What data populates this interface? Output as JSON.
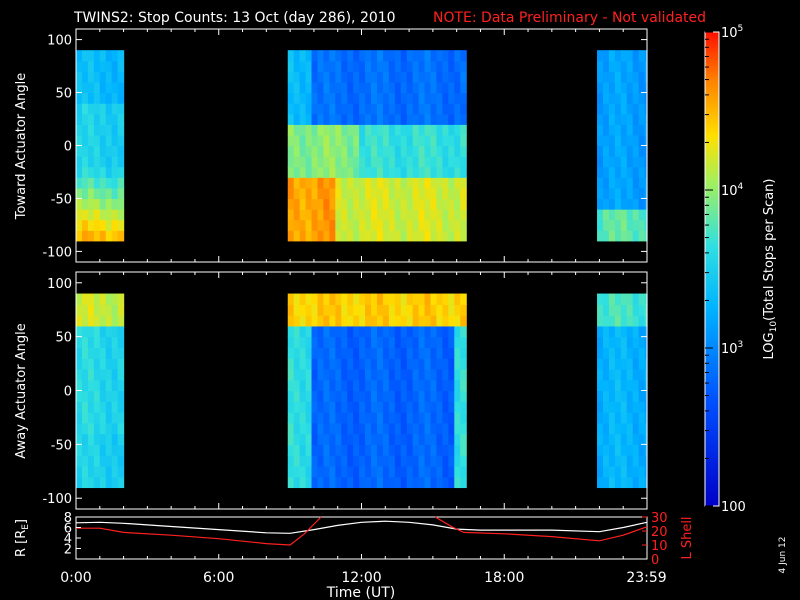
{
  "header": {
    "title": "TWINS2: Stop Counts: 13 Oct (day 286), 2010",
    "note": "NOTE: Data Preliminary - Not validated",
    "note_color": "#ff2020"
  },
  "colorbar": {
    "label": "LOG10(Total Stops per Scan)",
    "label_main": "LOG",
    "label_sub": "10",
    "label_rest": "(Total Stops per Scan)",
    "tick_labels": [
      "10",
      "10",
      "10",
      "100"
    ],
    "tick_exponents": [
      "5",
      "4",
      "3",
      ""
    ],
    "range": [
      100,
      100000
    ],
    "scale": "log"
  },
  "footer": {
    "date_stamp": "4 Jun 12"
  },
  "chart_data": [
    {
      "type": "heatmap",
      "name": "toward",
      "ylabel": "Toward Actuator Angle",
      "ylim": [
        -110,
        110
      ],
      "yticks": [
        -100,
        -50,
        0,
        50,
        100
      ],
      "ytick_labels": [
        "-100",
        "-50",
        "0",
        "50",
        "100"
      ],
      "xlim_hours": [
        0,
        24
      ],
      "data_coverage_hours": [
        [
          0.0,
          2.0
        ],
        [
          8.9,
          16.4
        ],
        [
          21.9,
          24.0
        ]
      ],
      "angle_range": [
        -90,
        90
      ]
    },
    {
      "type": "heatmap",
      "name": "away",
      "ylabel": "Away Actuator Angle",
      "ylim": [
        -110,
        110
      ],
      "yticks": [
        -100,
        -50,
        0,
        50,
        100
      ],
      "ytick_labels": [
        "-100",
        "-50",
        "0",
        "50",
        "100"
      ],
      "xlim_hours": [
        0,
        24
      ],
      "data_coverage_hours": [
        [
          0.0,
          2.0
        ],
        [
          8.9,
          16.4
        ],
        [
          21.9,
          24.0
        ]
      ],
      "angle_range": [
        -90,
        90
      ]
    },
    {
      "type": "line",
      "name": "orbit",
      "xlabel": "Time (UT)",
      "xticks_hours": [
        0,
        6,
        12,
        18,
        23.98
      ],
      "xtick_labels": [
        "0:00",
        "6:00",
        "12:00",
        "18:00",
        "23:59"
      ],
      "left_axis": {
        "label": "R [RE]",
        "label_main": "R [R",
        "label_sub": "E",
        "label_end": "]",
        "ylim": [
          0,
          8
        ],
        "ticks": [
          2,
          4,
          6,
          8
        ]
      },
      "right_axis": {
        "label": "L Shell",
        "ylim": [
          0,
          30
        ],
        "ticks": [
          10,
          20,
          30
        ],
        "tick_labels": [
          "10",
          "20",
          "30"
        ],
        "color": "#ff2020"
      },
      "series": [
        {
          "axis": "left",
          "color": "#ffffff",
          "x": [
            0,
            1,
            2,
            4,
            6,
            8,
            9,
            10,
            11,
            12,
            13,
            14,
            15,
            16,
            17,
            18,
            20,
            22,
            23,
            24
          ],
          "y": [
            6.9,
            7.0,
            6.8,
            6.2,
            5.6,
            5.0,
            4.9,
            5.6,
            6.4,
            7.0,
            7.2,
            7.0,
            6.5,
            5.7,
            5.5,
            5.5,
            5.5,
            5.2,
            6.0,
            7.0
          ]
        },
        {
          "axis": "right",
          "color": "#ff2020",
          "x": [
            0,
            1,
            2,
            4,
            6,
            8,
            9,
            9.6,
            10.3
          ],
          "y": [
            22,
            22,
            19,
            17,
            14.5,
            11,
            10,
            18,
            30
          ]
        },
        {
          "axis": "right",
          "color": "#ff2020",
          "x": [
            15.1,
            15.8,
            16.3,
            18,
            20,
            22,
            23,
            24
          ],
          "y": [
            30,
            23,
            19,
            18,
            16,
            13,
            17,
            23
          ]
        }
      ]
    }
  ]
}
